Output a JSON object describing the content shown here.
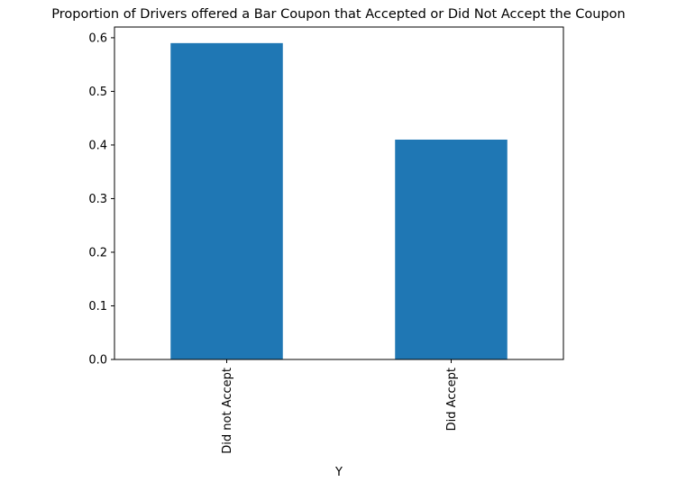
{
  "chart_data": {
    "type": "bar",
    "title": "Proportion of Drivers offered a Bar Coupon that Accepted or Did Not Accept the Coupon",
    "xlabel": "Y",
    "ylabel": "",
    "categories": [
      "Did not Accept",
      "Did Accept"
    ],
    "values": [
      0.59,
      0.41
    ],
    "ylim": [
      0,
      0.62
    ],
    "yticks": [
      0.0,
      0.1,
      0.2,
      0.3,
      0.4,
      0.5,
      0.6
    ],
    "ytick_labels": [
      "0.0",
      "0.1",
      "0.2",
      "0.3",
      "0.4",
      "0.5",
      "0.6"
    ],
    "xtick_rotation": "vertical",
    "grid": false,
    "legend": "none",
    "bar_color": "#1f77b4"
  }
}
